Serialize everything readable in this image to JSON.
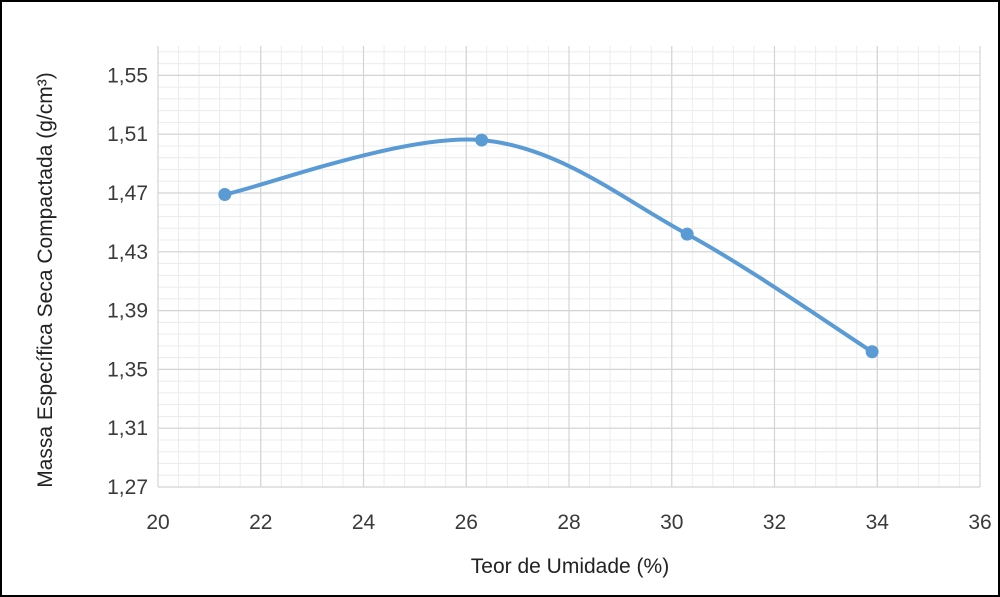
{
  "chart_data": {
    "type": "line",
    "title": "",
    "xlabel": "Teor de Umidade (%)",
    "ylabel": "Massa Específica Seca Compactada (g/cm³)",
    "xlim": [
      20,
      36
    ],
    "ylim": [
      1.27,
      1.57
    ],
    "x_ticks": [
      20,
      22,
      24,
      26,
      28,
      30,
      32,
      34,
      36
    ],
    "x_tick_labels": [
      "20",
      "22",
      "24",
      "26",
      "28",
      "30",
      "32",
      "34",
      "36"
    ],
    "y_ticks": [
      1.27,
      1.31,
      1.35,
      1.39,
      1.43,
      1.47,
      1.51,
      1.55
    ],
    "y_tick_labels": [
      "1,27",
      "1,31",
      "1,35",
      "1,39",
      "1,43",
      "1,47",
      "1,51",
      "1,55"
    ],
    "grid": true,
    "smooth": true,
    "series": [
      {
        "x": [
          21.3,
          26.3,
          30.3,
          33.9
        ],
        "y": [
          1.469,
          1.506,
          1.442,
          1.362
        ],
        "color": "#5b9bd5"
      }
    ]
  }
}
